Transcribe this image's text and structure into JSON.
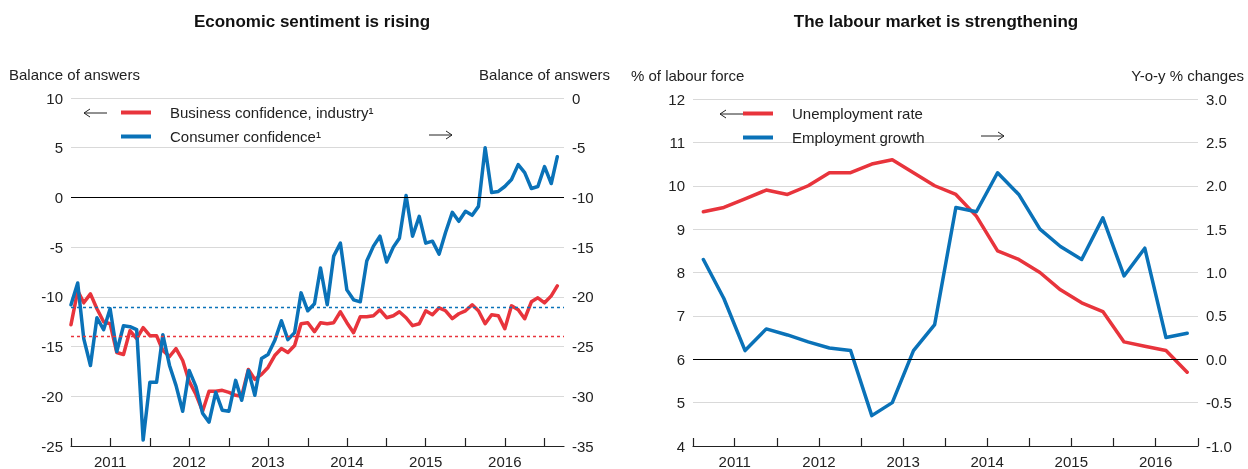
{
  "chart_data": [
    {
      "type": "line",
      "title": "Economic sentiment is rising",
      "ylabel": "Balance of answers",
      "y2label": "Balance of answers",
      "x": [
        "2011-01",
        "2011-02",
        "2011-03",
        "2011-04",
        "2011-05",
        "2011-06",
        "2011-07",
        "2011-08",
        "2011-09",
        "2011-10",
        "2011-11",
        "2011-12",
        "2012-01",
        "2012-02",
        "2012-03",
        "2012-04",
        "2012-05",
        "2012-06",
        "2012-07",
        "2012-08",
        "2012-09",
        "2012-10",
        "2012-11",
        "2012-12",
        "2013-01",
        "2013-02",
        "2013-03",
        "2013-04",
        "2013-05",
        "2013-06",
        "2013-07",
        "2013-08",
        "2013-09",
        "2013-10",
        "2013-11",
        "2013-12",
        "2014-01",
        "2014-02",
        "2014-03",
        "2014-04",
        "2014-05",
        "2014-06",
        "2014-07",
        "2014-08",
        "2014-09",
        "2014-10",
        "2014-11",
        "2014-12",
        "2015-01",
        "2015-02",
        "2015-03",
        "2015-04",
        "2015-05",
        "2015-06",
        "2015-07",
        "2015-08",
        "2015-09",
        "2015-10",
        "2015-11",
        "2015-12",
        "2016-01",
        "2016-02",
        "2016-03",
        "2016-04",
        "2016-05",
        "2016-06",
        "2016-07",
        "2016-08",
        "2016-09",
        "2016-10",
        "2016-11",
        "2016-12",
        "2017-01",
        "2017-02",
        "2017-03"
      ],
      "series": [
        {
          "name": "Business confidence, industry¹",
          "color": "#e8343c",
          "values": [
            -12.8,
            -9.4,
            -10.6,
            -9.7,
            -11.2,
            -12.5,
            -12.7,
            -15.6,
            -15.8,
            -13.4,
            -14.2,
            -13.1,
            -13.9,
            -13.9,
            -15.4,
            -16.0,
            -15.2,
            -16.4,
            -18.5,
            -19.8,
            -21.5,
            -19.5,
            -19.5,
            -19.4,
            -19.6,
            -19.9,
            -20.0,
            -17.3,
            -18.3,
            -17.8,
            -17.1,
            -15.9,
            -15.2,
            -15.6,
            -14.9,
            -12.7,
            -12.6,
            -13.5,
            -12.6,
            -12.7,
            -12.6,
            -11.5,
            -12.6,
            -13.6,
            -12.0,
            -12.0,
            -11.9,
            -11.3,
            -12.1,
            -11.9,
            -11.5,
            -12.1,
            -12.9,
            -12.7,
            -11.4,
            -11.8,
            -11.1,
            -11.4,
            -12.2,
            -11.7,
            -11.4,
            -10.8,
            -11.4,
            -12.7,
            -11.8,
            -11.9,
            -13.2,
            -10.9,
            -11.3,
            -12.2,
            -10.5,
            -10.1,
            -10.6,
            -9.9,
            -8.9
          ]
        },
        {
          "name": "Consumer confidence¹",
          "color": "#0a72b8",
          "axis": "y2",
          "values": [
            -20.8,
            -18.6,
            -24.2,
            -26.9,
            -22.1,
            -23.3,
            -21.2,
            -25.5,
            -22.9,
            -23.0,
            -23.3,
            -34.4,
            -28.6,
            -28.6,
            -23.8,
            -26.9,
            -28.9,
            -31.5,
            -27.4,
            -29.0,
            -31.7,
            -32.6,
            -29.6,
            -31.4,
            -31.5,
            -28.4,
            -30.4,
            -27.4,
            -29.9,
            -26.2,
            -25.8,
            -24.4,
            -22.4,
            -24.3,
            -23.6,
            -19.6,
            -21.4,
            -20.7,
            -17.1,
            -20.8,
            -15.9,
            -14.6,
            -19.3,
            -20.3,
            -20.5,
            -16.4,
            -14.9,
            -13.9,
            -16.5,
            -15.0,
            -14.1,
            -9.8,
            -13.9,
            -11.9,
            -14.6,
            -14.4,
            -15.7,
            -13.5,
            -11.5,
            -12.4,
            -11.4,
            -11.8,
            -10.9,
            -5.0,
            -9.5,
            -9.4,
            -8.9,
            -8.2,
            -6.7,
            -7.5,
            -9.1,
            -8.9,
            -6.9,
            -8.6,
            -5.9
          ]
        }
      ],
      "xlim": [
        "2011-01",
        "2017-04"
      ],
      "xticks": [
        {
          "value": "2011-01",
          "label": null
        },
        {
          "value": "2011-07",
          "label": "2011"
        },
        {
          "value": "2012-01",
          "label": null
        },
        {
          "value": "2012-07",
          "label": "2012"
        },
        {
          "value": "2013-01",
          "label": null
        },
        {
          "value": "2013-07",
          "label": "2013"
        },
        {
          "value": "2014-01",
          "label": null
        },
        {
          "value": "2014-07",
          "label": "2014"
        },
        {
          "value": "2015-01",
          "label": null
        },
        {
          "value": "2015-07",
          "label": "2015"
        },
        {
          "value": "2016-01",
          "label": null
        },
        {
          "value": "2016-07",
          "label": "2016"
        },
        {
          "value": "2017-01",
          "label": null
        }
      ],
      "ylim": [
        -25,
        10
      ],
      "yticks": [
        -25,
        -20,
        -15,
        -10,
        -5,
        0,
        5,
        10
      ],
      "y2lim": [
        -35,
        0
      ],
      "y2ticks": [
        -35,
        -30,
        -25,
        -20,
        -15,
        -10,
        -5,
        0
      ],
      "ref_lines": [
        {
          "axis": "y",
          "value": 0,
          "color": "#000000",
          "line_style": "solid"
        },
        {
          "axis": "y",
          "value": -14,
          "color": "#e8343c",
          "line_style": "dashed"
        },
        {
          "axis": "y2",
          "value": -21,
          "color": "#0a72b8",
          "line_style": "dashed"
        }
      ],
      "grid": "y",
      "legend": "top left",
      "marker": "none",
      "line_style": "solid"
    },
    {
      "type": "line",
      "title": "The labour market is strengthening",
      "ylabel": "% of labour force",
      "y2label": "Y-o-y % changes",
      "x": [
        "2011-02-15",
        "2011-05-15",
        "2011-08-15",
        "2011-11-15",
        "2012-02-15",
        "2012-05-15",
        "2012-08-15",
        "2012-11-15",
        "2013-02-15",
        "2013-05-15",
        "2013-08-15",
        "2013-11-15",
        "2014-02-15",
        "2014-05-15",
        "2014-08-15",
        "2014-11-15",
        "2015-02-15",
        "2015-05-15",
        "2015-08-15",
        "2015-11-15",
        "2016-02-15",
        "2016-05-15",
        "2016-08-15",
        "2016-11-15"
      ],
      "series": [
        {
          "name": "Unemployment rate",
          "color": "#e8343c",
          "values": [
            9.4,
            9.5,
            9.7,
            9.9,
            9.8,
            10.0,
            10.3,
            10.3,
            10.5,
            10.6,
            10.3,
            10.0,
            9.8,
            9.3,
            8.5,
            8.3,
            8.0,
            7.6,
            7.3,
            7.1,
            6.4,
            6.3,
            6.2,
            5.7
          ]
        },
        {
          "name": "Employment growth",
          "color": "#0a72b8",
          "axis": "y2",
          "values": [
            1.15,
            0.7,
            0.1,
            0.35,
            0.28,
            0.2,
            0.13,
            0.1,
            -0.65,
            -0.5,
            0.1,
            0.4,
            1.75,
            1.7,
            2.15,
            1.9,
            1.5,
            1.3,
            1.15,
            1.63,
            0.96,
            1.28,
            0.25,
            0.3
          ]
        }
      ],
      "xlim": [
        "2011-01",
        "2017-01"
      ],
      "xticks": [
        {
          "value": "2011-01",
          "label": null
        },
        {
          "value": "2011-07",
          "label": "2011"
        },
        {
          "value": "2012-01",
          "label": null
        },
        {
          "value": "2012-07",
          "label": "2012"
        },
        {
          "value": "2013-01",
          "label": null
        },
        {
          "value": "2013-07",
          "label": "2013"
        },
        {
          "value": "2014-01",
          "label": null
        },
        {
          "value": "2014-07",
          "label": "2014"
        },
        {
          "value": "2015-01",
          "label": null
        },
        {
          "value": "2015-07",
          "label": "2015"
        },
        {
          "value": "2016-01",
          "label": null
        },
        {
          "value": "2016-07",
          "label": "2016"
        },
        {
          "value": "2017-01",
          "label": null
        }
      ],
      "ylim": [
        4,
        12
      ],
      "yticks": [
        4,
        5,
        6,
        7,
        8,
        9,
        10,
        11,
        12
      ],
      "y2lim": [
        -1,
        3
      ],
      "y2ticks": [
        {
          "value": -1,
          "label": "-1.0"
        },
        -0.5,
        {
          "value": 0,
          "label": "0.0"
        },
        0.5,
        {
          "value": 1,
          "label": "1.0"
        },
        1.5,
        {
          "value": 2,
          "label": "2.0"
        },
        2.5,
        {
          "value": 3,
          "label": "3.0"
        }
      ],
      "ref_lines": [
        {
          "axis": "y2",
          "value": 0,
          "color": "#000000",
          "line_style": "solid"
        }
      ],
      "grid": "y",
      "legend": "top left",
      "marker": "none",
      "line_style": "solid"
    }
  ]
}
